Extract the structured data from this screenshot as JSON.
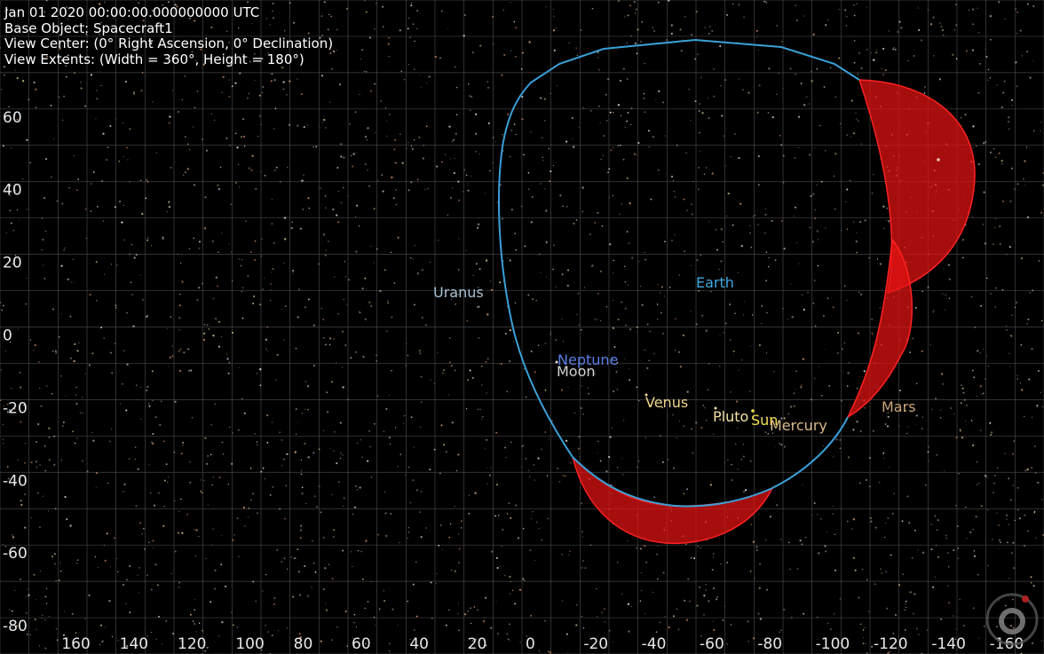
{
  "overlay": {
    "lines": [
      "Jan 01 2020 00:00:00.000000000 UTC",
      "Base Object: Spacecraft1",
      "View Center: (0° Right Ascension, 0° Declination)",
      "View Extents: (Width = 360°, Height = 180°)"
    ]
  },
  "axes": {
    "x_labels": [
      160,
      140,
      120,
      100,
      80,
      60,
      40,
      20,
      0,
      -20,
      -40,
      -60,
      -80,
      -100,
      -120,
      -140,
      -160
    ],
    "y_labels": [
      60,
      40,
      20,
      0,
      -20,
      -40,
      -60,
      -80
    ]
  },
  "bodies": [
    {
      "label": "Earth",
      "color": "#3fa9e0"
    },
    {
      "label": "Uranus",
      "color": "#a9c3d6"
    },
    {
      "label": "Neptune",
      "color": "#5b7fe6"
    },
    {
      "label": "Moon",
      "color": "#d2d2d2"
    },
    {
      "label": "Venus",
      "color": "#f0d68c"
    },
    {
      "label": "Pluto",
      "color": "#f3e2a4"
    },
    {
      "label": "Sun",
      "color": "#f5e050"
    },
    {
      "label": "Mercury",
      "color": "#d9b98a"
    },
    {
      "label": "Mars",
      "color": "#c9a57a"
    }
  ]
}
